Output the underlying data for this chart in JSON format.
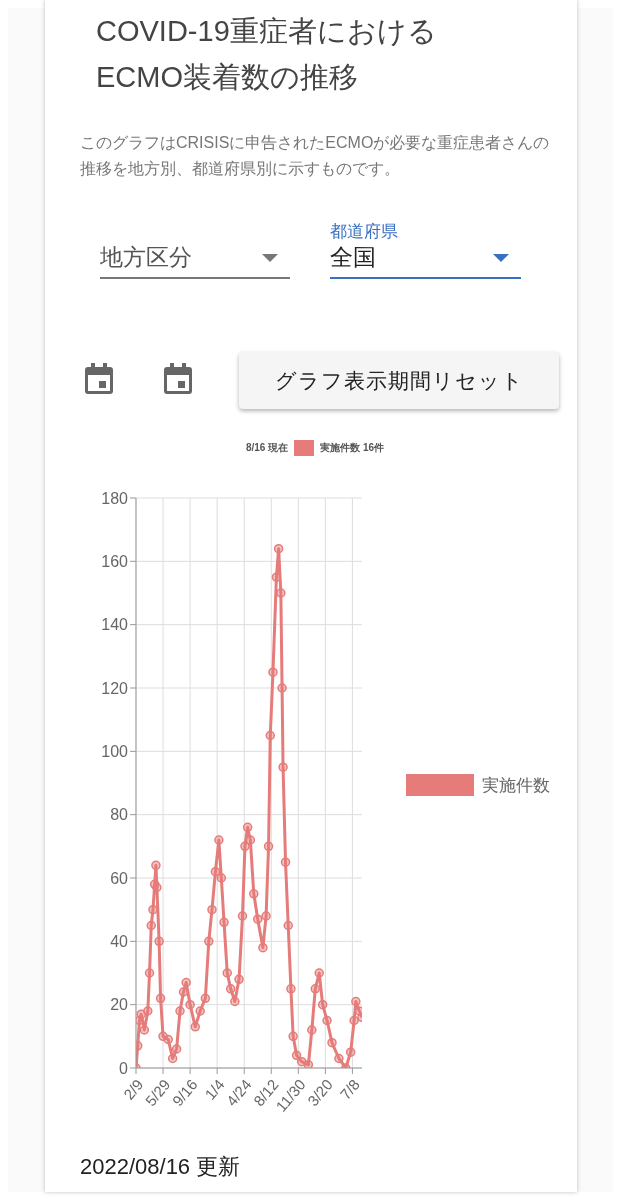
{
  "chart_data": {
    "type": "line",
    "title": "COVID-19重症者における ECMO装着数の推移",
    "subtitle": "このグラフはCRISISに申告されたECMOが必要な重症患者さんの推移を地方別、都道府県別に示すものです。",
    "annotations": [
      "地方区分",
      "都道府県",
      "全国",
      "グラフ表示期間リセット",
      "8/16 現在",
      "実施件数 16件",
      "2022/08/16 更新"
    ],
    "x": [
      "2020-02-09",
      "2020-02-16",
      "2020-02-23",
      "2020-03-01",
      "2020-03-14",
      "2020-03-28",
      "2020-04-04",
      "2020-04-11",
      "2020-04-18",
      "2020-04-25",
      "2020-04-30",
      "2020-05-04",
      "2020-05-13",
      "2020-05-19",
      "2020-05-29",
      "2020-06-19",
      "2020-07-07",
      "2020-07-23",
      "2020-08-06",
      "2020-08-20",
      "2020-08-31",
      "2020-09-16",
      "2020-10-07",
      "2020-10-27",
      "2020-11-17",
      "2020-12-01",
      "2020-12-14",
      "2020-12-28",
      "2021-01-11",
      "2021-01-21",
      "2021-02-01",
      "2021-02-14",
      "2021-02-28",
      "2021-03-17",
      "2021-04-03",
      "2021-04-17",
      "2021-04-27",
      "2021-05-08",
      "2021-05-19",
      "2021-06-02",
      "2021-06-18",
      "2021-07-09",
      "2021-07-22",
      "2021-08-01",
      "2021-08-08",
      "2021-08-19",
      "2021-09-02",
      "2021-09-11",
      "2021-09-20",
      "2021-09-25",
      "2021-09-29",
      "2021-10-09",
      "2021-10-20",
      "2021-10-31",
      "2021-11-09",
      "2021-11-23",
      "2021-12-14",
      "2022-01-10",
      "2022-01-24",
      "2022-02-07",
      "2022-02-23",
      "2022-03-09",
      "2022-03-27",
      "2022-04-16",
      "2022-05-14",
      "2022-06-11",
      "2022-07-01",
      "2022-07-15",
      "2022-07-22",
      "2022-08-05",
      "2022-08-16"
    ],
    "series": [
      {
        "name": "実施件数",
        "color": "#e57c7a",
        "values": [
          0,
          7,
          15,
          17,
          12,
          18,
          30,
          45,
          50,
          58,
          64,
          57,
          40,
          22,
          10,
          9,
          3,
          6,
          18,
          24,
          27,
          20,
          13,
          18,
          22,
          40,
          50,
          62,
          72,
          60,
          46,
          30,
          25,
          21,
          28,
          48,
          70,
          76,
          72,
          55,
          47,
          38,
          48,
          70,
          105,
          125,
          155,
          164,
          150,
          120,
          95,
          65,
          45,
          25,
          10,
          4,
          2,
          1,
          12,
          25,
          30,
          20,
          15,
          8,
          3,
          0,
          5,
          15,
          21,
          18,
          16
        ]
      }
    ],
    "xlim": [
      "2020-02-09",
      "2022-08-16"
    ],
    "xticks": [
      {
        "value": "2020-02-09",
        "label": "2/9"
      },
      {
        "value": "2020-05-29",
        "label": "5/29"
      },
      {
        "value": "2020-09-16",
        "label": "9/16"
      },
      {
        "value": "2021-01-04",
        "label": "1/4"
      },
      {
        "value": "2021-04-24",
        "label": "4/24"
      },
      {
        "value": "2021-08-12",
        "label": "8/12"
      },
      {
        "value": "2021-11-30",
        "label": "11/30"
      },
      {
        "value": "2022-03-20",
        "label": "3/20"
      },
      {
        "value": "2022-07-08",
        "label": "7/8"
      }
    ],
    "ylim": [
      0,
      180
    ],
    "yticks": [
      0,
      20,
      40,
      60,
      80,
      100,
      120,
      140,
      160,
      180
    ],
    "grid": true,
    "legend": "right",
    "marker": "circle"
  }
}
